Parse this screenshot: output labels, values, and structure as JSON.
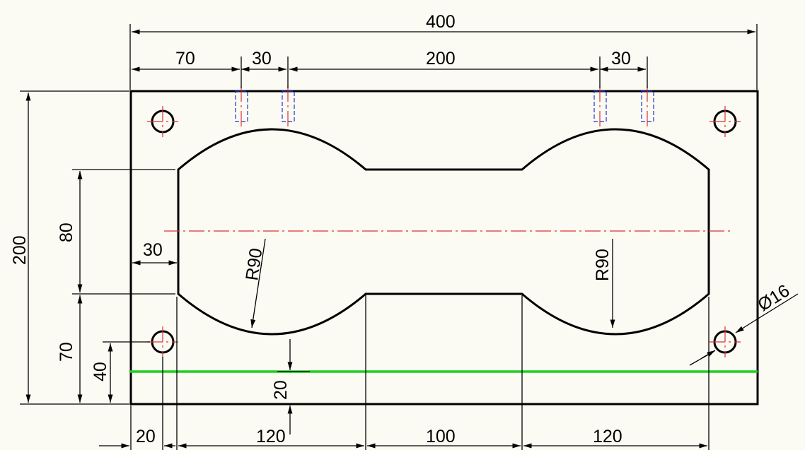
{
  "colors": {
    "background": "#fbfbf3",
    "outline": "#000000",
    "centerline": "#e03030",
    "hidden_line": "#1f30d0",
    "highlight_line": "#1ed01e"
  },
  "dimensions": {
    "overall_width": "400",
    "top_left_offset": "70",
    "top_slot_width_left": "30",
    "top_middle_span": "200",
    "top_slot_width_right": "30",
    "overall_height": "200",
    "left_height_80": "80",
    "left_height_70": "70",
    "left_height_40": "40",
    "left_gap_30": "30",
    "bottom_gap_20_vertical": "20",
    "radius_left": "R90",
    "radius_right": "R90",
    "hole_diameter": "Ø16",
    "bottom_20": "20",
    "bottom_120_left": "120",
    "bottom_100": "100",
    "bottom_120_right": "120"
  },
  "icons": {
    "hole": "hole-icon",
    "hidden_slot": "hidden-slot-icon"
  }
}
